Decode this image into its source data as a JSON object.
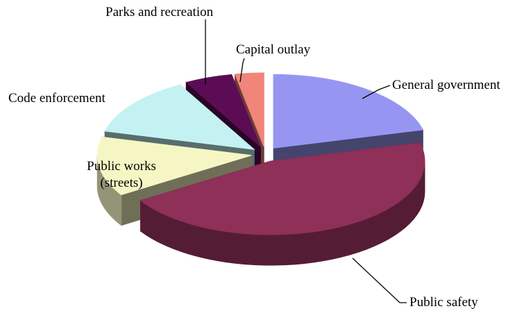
{
  "chart_data": {
    "type": "pie3d",
    "categories": [
      "General government",
      "Public safety",
      "Public works (streets)",
      "Code enforcement",
      "Parks and recreation",
      "Capital outlay"
    ],
    "values": [
      21,
      45,
      13,
      13,
      5,
      3
    ],
    "colors": [
      "#9696f2",
      "#8e3058",
      "#f6f6c4",
      "#c4f2f2",
      "#5c0c54",
      "#f2857a"
    ]
  }
}
